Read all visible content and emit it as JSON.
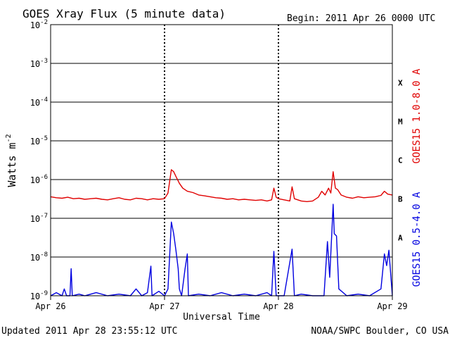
{
  "chart_data": {
    "type": "line",
    "title": "GOES Xray Flux (5 minute data)",
    "begin_label": "Begin:  2011 Apr 26 0000 UTC",
    "ylabel": "Watts m",
    "ylabel_exponent": "-2",
    "xlabel": "Universal Time",
    "y_scale": "log",
    "ylim": [
      1e-09,
      0.01
    ],
    "xlim_days": [
      0,
      3
    ],
    "y_ticks": [
      {
        "base": "10",
        "exp": "-2",
        "value": 0.01
      },
      {
        "base": "10",
        "exp": "-3",
        "value": 0.001
      },
      {
        "base": "10",
        "exp": "-4",
        "value": 0.0001
      },
      {
        "base": "10",
        "exp": "-5",
        "value": 1e-05
      },
      {
        "base": "10",
        "exp": "-6",
        "value": 1e-06
      },
      {
        "base": "10",
        "exp": "-7",
        "value": 1e-07
      },
      {
        "base": "10",
        "exp": "-8",
        "value": 1e-08
      },
      {
        "base": "10",
        "exp": "-9",
        "value": 1e-09
      }
    ],
    "x_ticks": [
      "Apr 26",
      "Apr 27",
      "Apr 28",
      "Apr 29"
    ],
    "flare_classes": [
      {
        "label": "X",
        "value": 0.0001
      },
      {
        "label": "M",
        "value": 1e-05
      },
      {
        "label": "C",
        "value": 1e-06
      },
      {
        "label": "B",
        "value": 1e-07
      },
      {
        "label": "A",
        "value": 1e-08
      }
    ],
    "grid": true,
    "series": [
      {
        "name": "GOES15 1.0-8.0 A",
        "color": "#e00000",
        "points": [
          [
            0.0,
            3.6e-07
          ],
          [
            0.05,
            3.4e-07
          ],
          [
            0.1,
            3.3e-07
          ],
          [
            0.15,
            3.5e-07
          ],
          [
            0.2,
            3.2e-07
          ],
          [
            0.25,
            3.3e-07
          ],
          [
            0.3,
            3.1e-07
          ],
          [
            0.35,
            3.2e-07
          ],
          [
            0.4,
            3.3e-07
          ],
          [
            0.45,
            3.1e-07
          ],
          [
            0.5,
            3e-07
          ],
          [
            0.55,
            3.2e-07
          ],
          [
            0.6,
            3.4e-07
          ],
          [
            0.65,
            3.1e-07
          ],
          [
            0.7,
            3e-07
          ],
          [
            0.75,
            3.3e-07
          ],
          [
            0.8,
            3.2e-07
          ],
          [
            0.85,
            3e-07
          ],
          [
            0.9,
            3.2e-07
          ],
          [
            0.95,
            3.1e-07
          ],
          [
            1.0,
            3.2e-07
          ],
          [
            1.03,
            4.5e-07
          ],
          [
            1.06,
            1.8e-06
          ],
          [
            1.08,
            1.6e-06
          ],
          [
            1.1,
            1.2e-06
          ],
          [
            1.13,
            8e-07
          ],
          [
            1.16,
            6e-07
          ],
          [
            1.2,
            5e-07
          ],
          [
            1.25,
            4.6e-07
          ],
          [
            1.3,
            4e-07
          ],
          [
            1.35,
            3.8e-07
          ],
          [
            1.4,
            3.6e-07
          ],
          [
            1.45,
            3.4e-07
          ],
          [
            1.5,
            3.3e-07
          ],
          [
            1.55,
            3.1e-07
          ],
          [
            1.6,
            3.2e-07
          ],
          [
            1.65,
            3e-07
          ],
          [
            1.7,
            3.1e-07
          ],
          [
            1.75,
            3e-07
          ],
          [
            1.8,
            2.9e-07
          ],
          [
            1.85,
            3e-07
          ],
          [
            1.9,
            2.8e-07
          ],
          [
            1.94,
            3e-07
          ],
          [
            1.96,
            6e-07
          ],
          [
            1.98,
            3.5e-07
          ],
          [
            2.0,
            3.2e-07
          ],
          [
            2.05,
            3e-07
          ],
          [
            2.1,
            2.8e-07
          ],
          [
            2.12,
            6.5e-07
          ],
          [
            2.14,
            3.2e-07
          ],
          [
            2.2,
            2.8e-07
          ],
          [
            2.25,
            2.7e-07
          ],
          [
            2.3,
            2.8e-07
          ],
          [
            2.35,
            3.5e-07
          ],
          [
            2.38,
            5e-07
          ],
          [
            2.41,
            4e-07
          ],
          [
            2.44,
            6e-07
          ],
          [
            2.46,
            4.5e-07
          ],
          [
            2.48,
            1.6e-06
          ],
          [
            2.5,
            6e-07
          ],
          [
            2.52,
            5.5e-07
          ],
          [
            2.55,
            4e-07
          ],
          [
            2.6,
            3.5e-07
          ],
          [
            2.65,
            3.3e-07
          ],
          [
            2.7,
            3.6e-07
          ],
          [
            2.75,
            3.4e-07
          ],
          [
            2.8,
            3.5e-07
          ],
          [
            2.85,
            3.6e-07
          ],
          [
            2.9,
            3.9e-07
          ],
          [
            2.93,
            5e-07
          ],
          [
            2.96,
            4.2e-07
          ],
          [
            3.0,
            4e-07
          ]
        ]
      },
      {
        "name": "GOES15 0.5-4.0 A",
        "color": "#0000e0",
        "points": [
          [
            0.0,
            1e-09
          ],
          [
            0.05,
            1.2e-09
          ],
          [
            0.1,
            1e-09
          ],
          [
            0.12,
            1.5e-09
          ],
          [
            0.14,
            1e-09
          ],
          [
            0.17,
            1e-09
          ],
          [
            0.18,
            5e-09
          ],
          [
            0.19,
            1e-09
          ],
          [
            0.25,
            1.1e-09
          ],
          [
            0.3,
            1e-09
          ],
          [
            0.4,
            1.2e-09
          ],
          [
            0.5,
            1e-09
          ],
          [
            0.6,
            1.1e-09
          ],
          [
            0.7,
            1e-09
          ],
          [
            0.75,
            1.5e-09
          ],
          [
            0.8,
            1e-09
          ],
          [
            0.85,
            1.2e-09
          ],
          [
            0.88,
            5.8e-09
          ],
          [
            0.89,
            1e-09
          ],
          [
            0.95,
            1.3e-09
          ],
          [
            1.0,
            1e-09
          ],
          [
            1.03,
            1.5e-09
          ],
          [
            1.06,
            8e-08
          ],
          [
            1.08,
            4e-08
          ],
          [
            1.1,
            1.5e-08
          ],
          [
            1.12,
            5e-09
          ],
          [
            1.13,
            1.5e-09
          ],
          [
            1.15,
            1e-09
          ],
          [
            1.18,
            5e-09
          ],
          [
            1.2,
            1.2e-08
          ],
          [
            1.21,
            1e-09
          ],
          [
            1.3,
            1.1e-09
          ],
          [
            1.4,
            1e-09
          ],
          [
            1.5,
            1.2e-09
          ],
          [
            1.6,
            1e-09
          ],
          [
            1.7,
            1.1e-09
          ],
          [
            1.8,
            1e-09
          ],
          [
            1.9,
            1.2e-09
          ],
          [
            1.94,
            1e-09
          ],
          [
            1.96,
            1.4e-08
          ],
          [
            1.98,
            1e-09
          ],
          [
            2.05,
            1e-09
          ],
          [
            2.12,
            1.6e-08
          ],
          [
            2.14,
            1e-09
          ],
          [
            2.2,
            1.1e-09
          ],
          [
            2.3,
            1e-09
          ],
          [
            2.4,
            1e-09
          ],
          [
            2.43,
            2.5e-08
          ],
          [
            2.45,
            3e-09
          ],
          [
            2.47,
            5e-08
          ],
          [
            2.48,
            2.3e-07
          ],
          [
            2.49,
            4e-08
          ],
          [
            2.51,
            3.5e-08
          ],
          [
            2.53,
            1.5e-09
          ],
          [
            2.6,
            1e-09
          ],
          [
            2.7,
            1.1e-09
          ],
          [
            2.8,
            1e-09
          ],
          [
            2.9,
            1.5e-09
          ],
          [
            2.93,
            1.2e-08
          ],
          [
            2.95,
            6e-09
          ],
          [
            2.97,
            1.5e-08
          ],
          [
            3.0,
            1e-09
          ]
        ]
      }
    ]
  },
  "footer": {
    "updated": "Updated 2011 Apr 28 23:55:12 UTC",
    "credit": "NOAA/SWPC Boulder, CO USA"
  }
}
